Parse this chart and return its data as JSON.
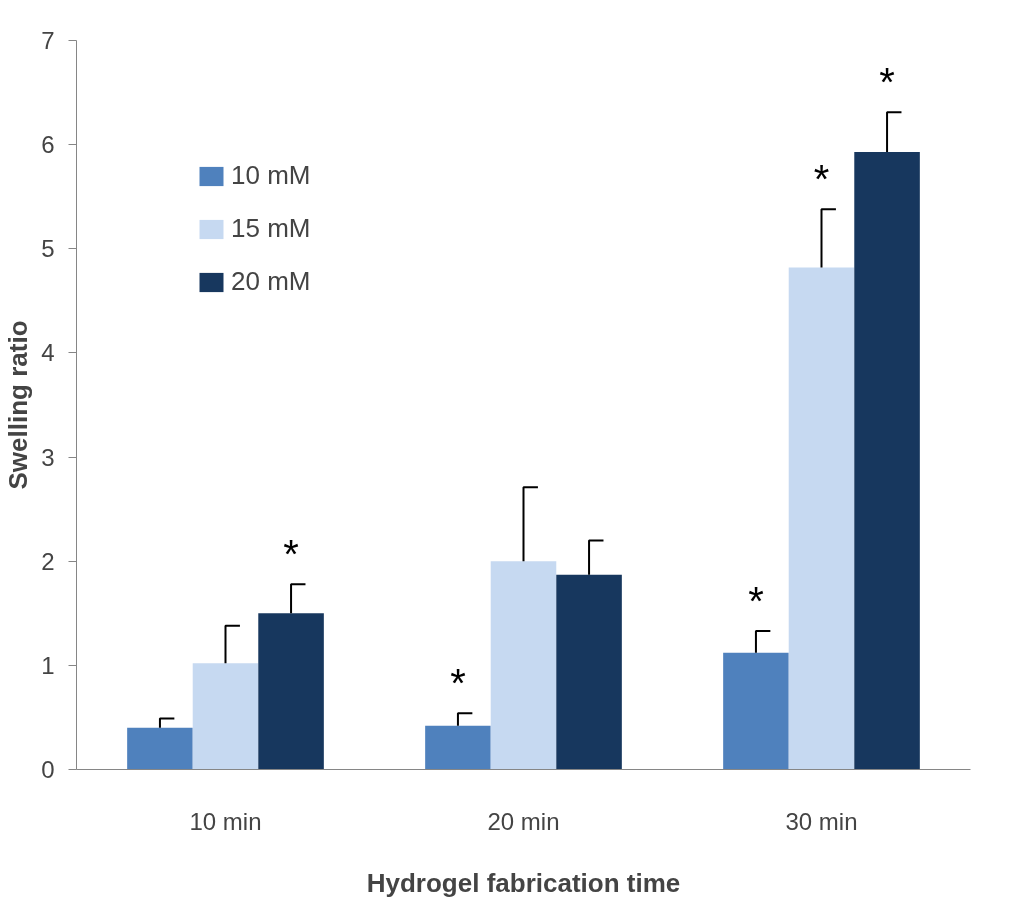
{
  "chart_data": {
    "type": "bar",
    "xlabel": "Hydrogel fabrication time",
    "ylabel": "Swelling ratio",
    "categories": [
      "10 min",
      "20 min",
      "30 min"
    ],
    "series": [
      {
        "name": "10 mM",
        "color": "#4f81bd",
        "values": [
          0.4,
          0.42,
          1.12
        ],
        "errors": [
          [
            0.4,
            0.49
          ],
          [
            0.42,
            0.54
          ],
          [
            1.12,
            1.33
          ]
        ],
        "value_labels": [
          null,
          "*",
          "*"
        ]
      },
      {
        "name": "15 mM",
        "color": "#c6d9f1",
        "values": [
          1.02,
          2.0,
          4.82
        ],
        "errors": [
          [
            1.02,
            1.38
          ],
          [
            2.0,
            2.71
          ],
          [
            4.82,
            5.38
          ]
        ],
        "value_labels": [
          null,
          null,
          "*"
        ]
      },
      {
        "name": "20 mM",
        "color": "#17375e",
        "values": [
          1.5,
          1.87,
          5.93
        ],
        "errors": [
          [
            1.5,
            1.78
          ],
          [
            1.87,
            2.2
          ],
          [
            5.93,
            6.31
          ]
        ],
        "value_labels": [
          "*",
          null,
          "*"
        ]
      }
    ],
    "ylim": [
      0,
      7
    ],
    "yticks": [
      0,
      1,
      2,
      3,
      4,
      5,
      6,
      7
    ],
    "grid": false,
    "legend": "top left"
  }
}
